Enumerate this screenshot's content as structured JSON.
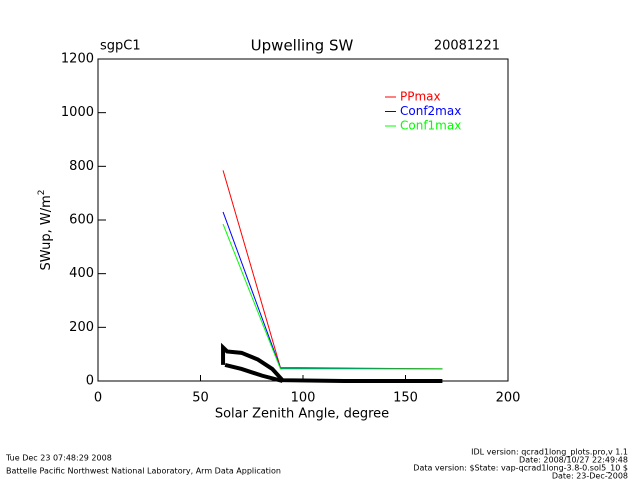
{
  "chart_data": {
    "type": "line",
    "title": "Upwelling SW",
    "site": "sgpC1",
    "date": "20081221",
    "x_label": "Solar Zenith Angle, degree",
    "y_label": "SWup, W/m",
    "y_label_superscript": "2",
    "xlim": [
      0,
      200
    ],
    "xticks": [
      0,
      50,
      100,
      150,
      200
    ],
    "ylim": [
      0,
      1200
    ],
    "yticks": [
      0,
      200,
      400,
      600,
      800,
      1000,
      1200
    ],
    "series": [
      {
        "name": "PPmax",
        "color": "#ff0000",
        "x": [
          61,
          89,
          168
        ],
        "values": [
          785,
          50,
          45
        ]
      },
      {
        "name": "Conf2max",
        "color": "#0000ff",
        "x": [
          61,
          89,
          168
        ],
        "values": [
          630,
          48,
          45
        ]
      },
      {
        "name": "Conf1max",
        "color": "#00ff00",
        "x": [
          61,
          89,
          168
        ],
        "values": [
          585,
          45,
          45
        ]
      },
      {
        "color": "#000000",
        "x": [
          61,
          61,
          63,
          70,
          78,
          85,
          90,
          120,
          168
        ],
        "values": [
          60,
          125,
          110,
          105,
          80,
          45,
          3,
          0,
          0
        ]
      },
      {
        "color": "#000000",
        "x": [
          62,
          70,
          80,
          90
        ],
        "values": [
          60,
          45,
          20,
          0
        ]
      }
    ],
    "footer_left": [
      "Tue Dec 23 07:48:29 2008",
      "Battelle Pacific Northwest National Laboratory, Arm Data Application"
    ],
    "footer_right": [
      "IDL version: qcrad1long_plots.pro,v 1.1",
      "Date: 2008/10/27 22:49:48",
      "Data version: $State: vap-qcrad1long-3.8-0.sol5_10 $",
      "Date: 23-Dec-2008"
    ]
  }
}
